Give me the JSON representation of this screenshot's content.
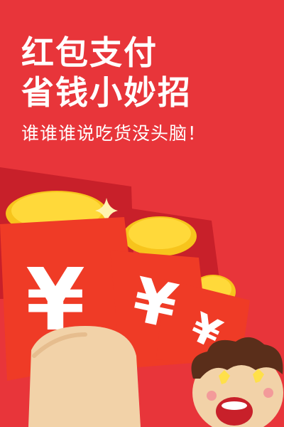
{
  "poster": {
    "headline_line1": "红包支付",
    "headline_line2": "省钱小妙招",
    "subtitle": "谁谁谁说吃货没头脑！",
    "currency_glyph": "¥"
  },
  "colors": {
    "background": "#e8353a",
    "envelope_red": "#ee3a28",
    "envelope_shadow": "#c8202a",
    "coin_gold": "#f7c41c",
    "coin_gold_light": "#ffd93a",
    "hand_skin": "#f2d2a8",
    "white": "#ffffff"
  },
  "icons": [
    "sparkle-icon",
    "yen-icon",
    "cartoon-character-icon",
    "hand-icon"
  ]
}
